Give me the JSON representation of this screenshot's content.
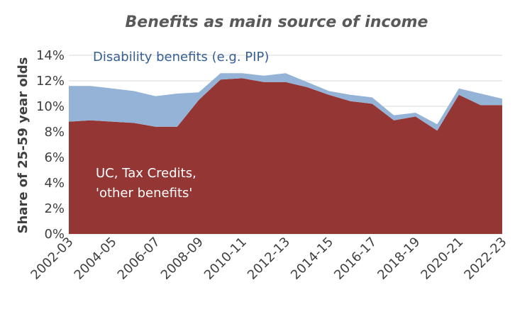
{
  "chart_data": {
    "type": "area",
    "stacked": true,
    "title": "Benefits as main source of income",
    "ylabel": "Share of 25-59 year olds",
    "xlabel": "",
    "x": [
      "2002-03",
      "2003-04",
      "2004-05",
      "2005-06",
      "2006-07",
      "2007-08",
      "2008-09",
      "2009-10",
      "2010-11",
      "2011-12",
      "2012-13",
      "2013-14",
      "2014-15",
      "2015-16",
      "2016-17",
      "2017-18",
      "2018-19",
      "2019-20",
      "2020-21",
      "2021-22",
      "2022-23"
    ],
    "x_tick_labels": [
      "2002-03",
      "2004-05",
      "2006-07",
      "2008-09",
      "2010-11",
      "2012-13",
      "2014-15",
      "2016-17",
      "2018-19",
      "2020-21",
      "2022-23"
    ],
    "ylim": [
      0,
      14
    ],
    "y_ticks": [
      "0%",
      "2%",
      "4%",
      "6%",
      "8%",
      "10%",
      "12%",
      "14%"
    ],
    "y_unit": "%",
    "grid": true,
    "series": [
      {
        "name": "UC, Tax Credits, 'other benefits'",
        "label_lines": [
          "UC, Tax Credits,",
          "'other benefits'"
        ],
        "color": "#943634",
        "values": [
          8.8,
          8.9,
          8.8,
          8.7,
          8.4,
          8.4,
          10.5,
          12.1,
          12.2,
          11.9,
          11.9,
          11.5,
          10.9,
          10.4,
          10.2,
          8.9,
          9.2,
          8.1,
          10.9,
          10.1,
          10.1
        ]
      },
      {
        "name": "Disability benefits (e.g. PIP)",
        "label_lines": [
          "Disability benefits (e.g. PIP)"
        ],
        "color": "#95B3D7",
        "values": [
          2.8,
          2.7,
          2.6,
          2.5,
          2.4,
          2.6,
          0.6,
          0.5,
          0.4,
          0.5,
          0.7,
          0.4,
          0.3,
          0.5,
          0.5,
          0.4,
          0.3,
          0.5,
          0.5,
          0.9,
          0.5
        ]
      }
    ]
  }
}
